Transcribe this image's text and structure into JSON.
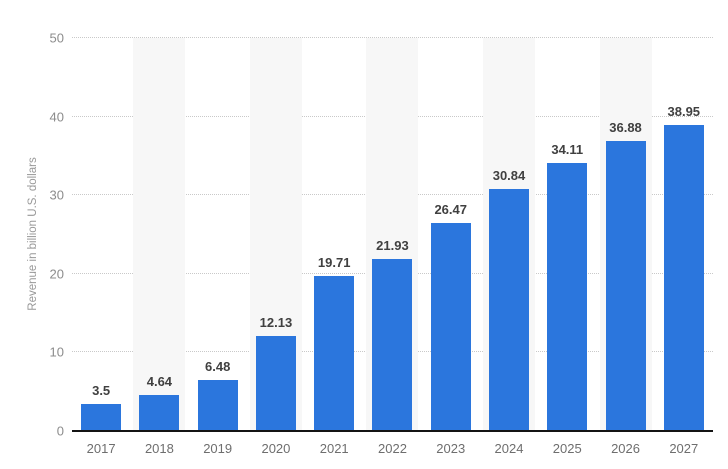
{
  "chart_data": {
    "type": "bar",
    "title": "",
    "categories": [
      "2017",
      "2018",
      "2019",
      "2020",
      "2021",
      "2022",
      "2023",
      "2024",
      "2025",
      "2026",
      "2027"
    ],
    "values": [
      3.5,
      4.64,
      6.48,
      12.13,
      19.71,
      21.93,
      26.47,
      30.84,
      34.11,
      36.88,
      38.95
    ],
    "value_labels": [
      "3.5",
      "4.64",
      "6.48",
      "12.13",
      "19.71",
      "21.93",
      "26.47",
      "30.84",
      "34.11",
      "36.88",
      "38.95"
    ],
    "xlabel": "",
    "ylabel": "Revenue in billion U.S. dollars",
    "ylim": [
      0,
      50
    ],
    "yticks": [
      0,
      10,
      20,
      30,
      40,
      50
    ],
    "grid": "horizontal-dotted",
    "legend": "none",
    "striped_columns": [
      1,
      3,
      5,
      7,
      9
    ],
    "colors": {
      "bar": "#2b76dd",
      "value_label": "#404040",
      "tick_label": "#8c8c8c",
      "category_label": "#6e6e6e",
      "axis_title": "#999999",
      "gridline": "#c9c9c9",
      "baseline": "#141414",
      "column_stripe": "#f7f7f7",
      "background": "#ffffff"
    }
  }
}
